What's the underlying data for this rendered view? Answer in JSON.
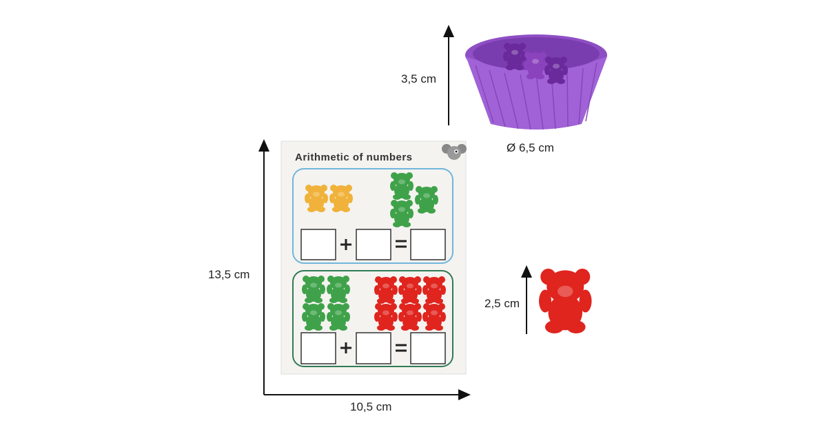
{
  "card": {
    "title": "Arithmetic of numbers",
    "problems": [
      {
        "left_count": 2,
        "left_color": "yellow",
        "right_count": 3,
        "right_color": "green",
        "plus": "+",
        "equals": "="
      },
      {
        "left_count": 4,
        "left_color": "green",
        "right_count": 6,
        "right_color": "red",
        "plus": "+",
        "equals": "="
      }
    ]
  },
  "dimensions": {
    "card_height": "13,5 cm",
    "card_width": "10,5 cm",
    "bowl_height": "3,5 cm",
    "bowl_diameter": "Ø 6,5 cm",
    "bear_height": "2,5 cm"
  },
  "colors": {
    "yellow_bear": "#f0b23a",
    "green_bear": "#3fa24a",
    "red_bear": "#e0241e",
    "bowl": "#9c5bd1",
    "top_frame": "#6fb6dc",
    "bottom_frame": "#2f7a55"
  }
}
